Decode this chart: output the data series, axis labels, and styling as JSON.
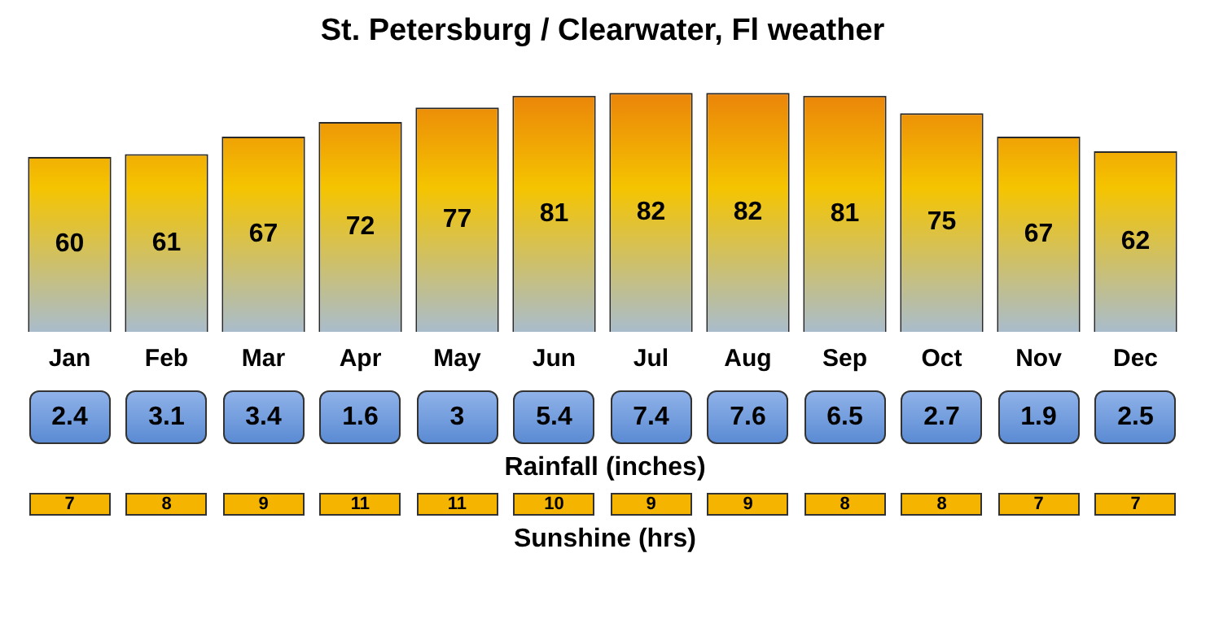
{
  "chart_data": [
    {
      "type": "bar",
      "title": "St. Petersburg / Clearwater, Fl weather",
      "categories": [
        "Jan",
        "Feb",
        "Mar",
        "Apr",
        "May",
        "Jun",
        "Jul",
        "Aug",
        "Sep",
        "Oct",
        "Nov",
        "Dec"
      ],
      "values": [
        60,
        61,
        67,
        72,
        77,
        81,
        82,
        82,
        81,
        75,
        67,
        62
      ],
      "color": "#f5c400",
      "data_labels": true,
      "grid": false,
      "legend": false
    },
    {
      "type": "other",
      "xlabel": "Rainfall (inches)",
      "values": [
        2.4,
        3.1,
        3.4,
        1.6,
        3,
        5.4,
        7.4,
        7.6,
        6.5,
        2.7,
        1.9,
        2.5
      ],
      "data_labels": true,
      "color": "#5b8bd4"
    },
    {
      "type": "other",
      "xlabel": "Sunshine (hrs)",
      "values": [
        7,
        8,
        9,
        11,
        11,
        10,
        9,
        9,
        8,
        8,
        7,
        7
      ],
      "data_labels": true,
      "color": "#f5b400"
    }
  ]
}
